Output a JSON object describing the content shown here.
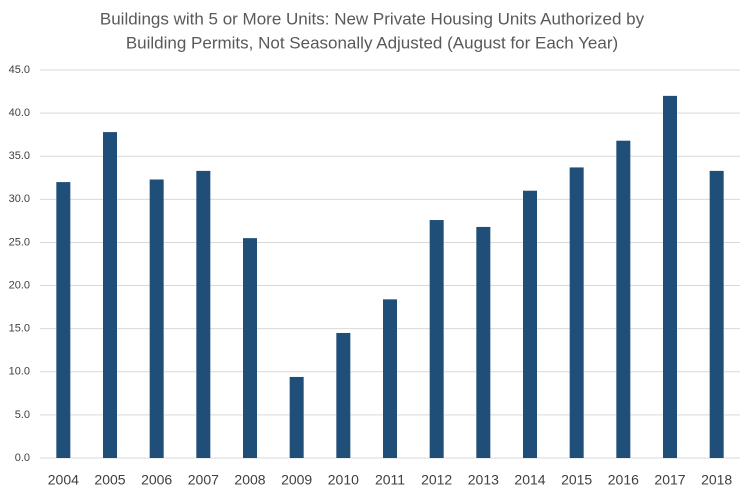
{
  "chart_data": {
    "type": "bar",
    "title": [
      "Buildings with 5 or More Units: New Private Housing Units Authorized by",
      "Building Permits, Not Seasonally Adjusted (August for Each Year)"
    ],
    "categories": [
      "2004",
      "2005",
      "2006",
      "2007",
      "2008",
      "2009",
      "2010",
      "2011",
      "2012",
      "2013",
      "2014",
      "2015",
      "2016",
      "2017",
      "2018"
    ],
    "values": [
      32.0,
      37.8,
      32.3,
      33.3,
      25.5,
      9.4,
      14.5,
      18.4,
      27.6,
      26.8,
      31.0,
      33.7,
      36.8,
      42.0,
      33.3
    ],
    "color": "#1f4e79",
    "ylim": [
      0,
      45
    ],
    "yticks": [
      {
        "value": 0,
        "label": "0.0"
      },
      {
        "value": 5,
        "label": "5.0"
      },
      {
        "value": 10,
        "label": "10.0"
      },
      {
        "value": 15,
        "label": "15.0"
      },
      {
        "value": 20,
        "label": "20.0"
      },
      {
        "value": 25,
        "label": "25.0"
      },
      {
        "value": 30,
        "label": "30.0"
      },
      {
        "value": 35,
        "label": "35.0"
      },
      {
        "value": 40,
        "label": "40.0"
      },
      {
        "value": 45,
        "label": "45.0"
      }
    ],
    "grid": true
  }
}
